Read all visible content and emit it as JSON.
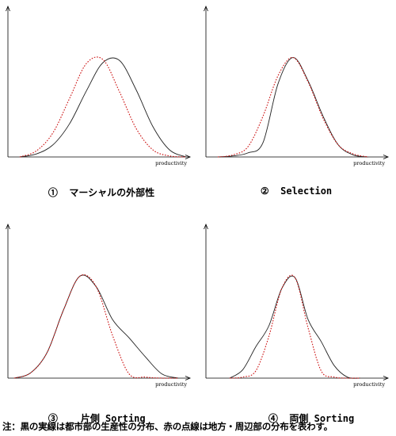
{
  "panels": [
    {
      "number": "①",
      "caption": "マーシャルの外部性"
    },
    {
      "number": "②",
      "caption": "Selection"
    },
    {
      "number": "③",
      "caption": "片側 Sorting"
    },
    {
      "number": "④",
      "caption": "両側 Sorting"
    }
  ],
  "note": "注：黒の実線は都市部の生産性の分布、赤の点線は地方・周辺部の分布を表わす。",
  "colors": {
    "urban": "#222222",
    "rural": "#cc1111"
  },
  "chart_data": [
    {
      "type": "line",
      "title": "マーシャルの外部性",
      "xlabel": "productivity",
      "ylabel": "",
      "x": [
        0,
        10,
        20,
        30,
        40,
        50,
        60,
        70,
        80,
        90,
        100
      ],
      "series": [
        {
          "line_style": "solid black",
          "values": [
            0,
            0.03,
            0.12,
            0.33,
            0.65,
            0.93,
            0.95,
            0.66,
            0.3,
            0.07,
            0
          ]
        },
        {
          "line_style": "dotted red",
          "values": [
            0,
            0.06,
            0.24,
            0.58,
            0.92,
            0.96,
            0.64,
            0.28,
            0.07,
            0.01,
            0
          ]
        }
      ]
    },
    {
      "type": "line",
      "title": "Selection",
      "xlabel": "productivity",
      "ylabel": "",
      "x": [
        0,
        10,
        20,
        30,
        40,
        50,
        60,
        70,
        80,
        90,
        100
      ],
      "series": [
        {
          "line_style": "solid black",
          "values": [
            0,
            0.01,
            0.04,
            0.14,
            0.72,
            0.98,
            0.75,
            0.4,
            0.12,
            0.02,
            0
          ]
        },
        {
          "line_style": "dotted red",
          "values": [
            0,
            0.02,
            0.1,
            0.4,
            0.8,
            0.98,
            0.74,
            0.38,
            0.12,
            0.03,
            0
          ]
        }
      ]
    },
    {
      "type": "line",
      "title": "片側 Sorting",
      "xlabel": "productivity",
      "ylabel": "",
      "x": [
        0,
        10,
        20,
        30,
        40,
        50,
        60,
        70,
        80,
        90,
        100
      ],
      "series": [
        {
          "line_style": "solid black",
          "values": [
            0,
            0.05,
            0.24,
            0.64,
            0.96,
            0.86,
            0.55,
            0.38,
            0.2,
            0.04,
            0
          ]
        },
        {
          "line_style": "dotted red",
          "values": [
            0,
            0.05,
            0.24,
            0.64,
            0.96,
            0.86,
            0.4,
            0.04,
            0.01,
            0,
            0
          ]
        }
      ]
    },
    {
      "type": "line",
      "title": "両側 Sorting",
      "xlabel": "productivity",
      "ylabel": "",
      "x": [
        0,
        10,
        20,
        30,
        40,
        50,
        60,
        70,
        80,
        90,
        100
      ],
      "series": [
        {
          "line_style": "solid black",
          "values": [
            0,
            0.08,
            0.3,
            0.5,
            0.86,
            0.96,
            0.56,
            0.35,
            0.12,
            0.01,
            0
          ]
        },
        {
          "line_style": "dotted red",
          "values": [
            0,
            0.01,
            0.07,
            0.4,
            0.86,
            0.96,
            0.48,
            0.07,
            0.01,
            0,
            0
          ]
        }
      ]
    }
  ]
}
